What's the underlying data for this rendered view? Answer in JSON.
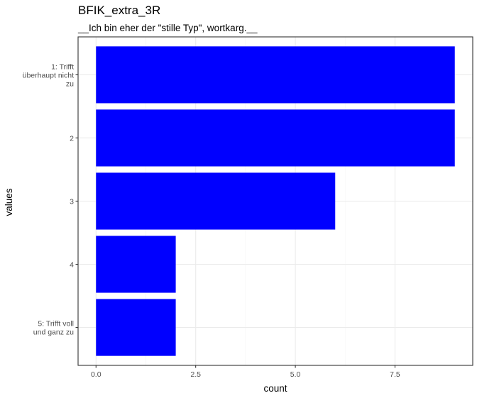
{
  "chart_data": {
    "type": "bar",
    "orientation": "horizontal",
    "title": "BFIK_extra_3R",
    "subtitle": "__Ich bin eher der \"stille Typ\", wortkarg.__",
    "xlabel": "count",
    "ylabel": "values",
    "categories": [
      [
        "1: Trifft",
        "überhaupt nicht",
        "zu"
      ],
      [
        "2"
      ],
      [
        "3"
      ],
      [
        "4"
      ],
      [
        "5: Trifft voll",
        "und ganz zu"
      ]
    ],
    "values": [
      9,
      9,
      6,
      2,
      2
    ],
    "xlim": [
      -0.45,
      9.45
    ],
    "xticks": [
      0,
      2.5,
      5,
      7.5
    ],
    "xtick_labels": [
      "0.0",
      "2.5",
      "5.0",
      "7.5"
    ],
    "grid": true,
    "bar_color": "#0000ff",
    "panel_border_color": "#333333",
    "grid_major_color": "#ebebeb",
    "grid_minor_color": "#f5f5f5"
  }
}
